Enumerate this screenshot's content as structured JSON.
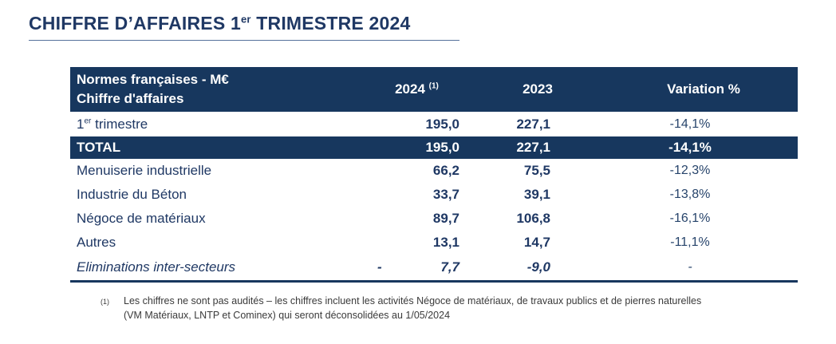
{
  "title": {
    "prefix": "CHIFFRE D’AFFAIRES 1",
    "sup": "er",
    "suffix": " TRIMESTRE 2024"
  },
  "table": {
    "header": {
      "col0_line1": "Normes françaises - M€",
      "col0_line2": "Chiffre d'affaires",
      "col1": "2024",
      "col1_sup": "(1)",
      "col2": "2023",
      "col3": "Variation %"
    },
    "rows": [
      {
        "label_prefix": "1",
        "label_sup": "er",
        "label_suffix": " trimestre",
        "v2024": "195,0",
        "v2023": "227,1",
        "variation": "-14,1%"
      },
      {
        "label": "TOTAL",
        "v2024": "195,0",
        "v2023": "227,1",
        "variation": "-14,1%"
      },
      {
        "label": "Menuiserie industrielle",
        "v2024": "66,2",
        "v2023": "75,5",
        "variation": "-12,3%"
      },
      {
        "label": "Industrie du Béton",
        "v2024": "33,7",
        "v2023": "39,1",
        "variation": "-13,8%"
      },
      {
        "label": "Négoce de matériaux",
        "v2024": "89,7",
        "v2023": "106,8",
        "variation": "-16,1%"
      },
      {
        "label": "Autres",
        "v2024": "13,1",
        "v2023": "14,7",
        "variation": "-11,1%"
      },
      {
        "label": "Eliminations inter-secteurs",
        "v2024_dash": "-",
        "v2024": "7,7",
        "v2023": "-9,0",
        "variation": "-"
      }
    ]
  },
  "footnote": {
    "marker": "(1)",
    "line1": "Les chiffres ne sont pas audités – les chiffres incluent les activités Négoce de matériaux, de travaux publics et de pierres naturelles",
    "line2": "(VM Matériaux, LNTP et Cominex) qui seront déconsolidées au 1/05/2024"
  },
  "colors": {
    "navy_bar": "#17375E",
    "title_text": "#1F3864",
    "footnote_text": "#3A3A3A"
  }
}
